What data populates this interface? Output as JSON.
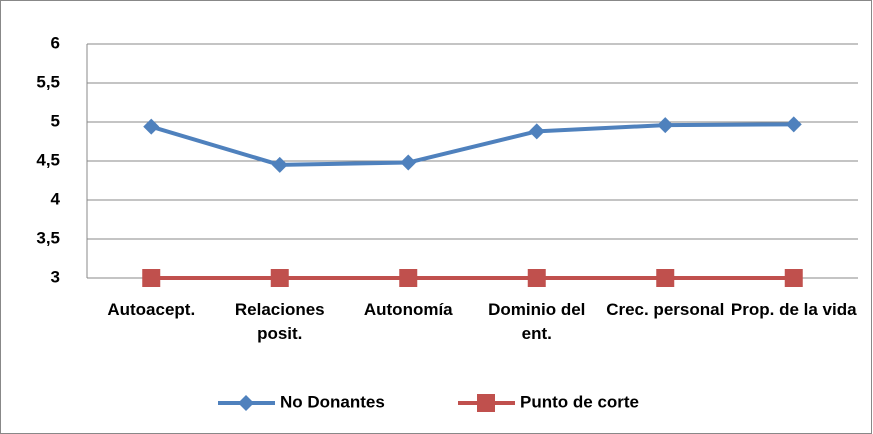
{
  "chart_data": {
    "type": "line",
    "categories": [
      "Autoacept.",
      "Relaciones posit.",
      "Autonomía",
      "Dominio del ent.",
      "Crec. personal",
      "Prop. de la vida"
    ],
    "series": [
      {
        "name": "No Donantes",
        "color": "#4f81bd",
        "marker": "diamond",
        "values": [
          4.94,
          4.45,
          4.48,
          4.88,
          4.96,
          4.97
        ]
      },
      {
        "name": "Punto de corte",
        "color": "#c0504d",
        "marker": "square",
        "values": [
          3,
          3,
          3,
          3,
          3,
          3
        ]
      }
    ],
    "ylim": [
      3,
      6
    ],
    "yticks": [
      3,
      {
        "value": 3.5,
        "label": "3,5"
      },
      4,
      {
        "value": 4.5,
        "label": "4,5"
      },
      5,
      {
        "value": 5.5,
        "label": "5,5"
      },
      6
    ],
    "grid": true,
    "legend": "bottom"
  }
}
